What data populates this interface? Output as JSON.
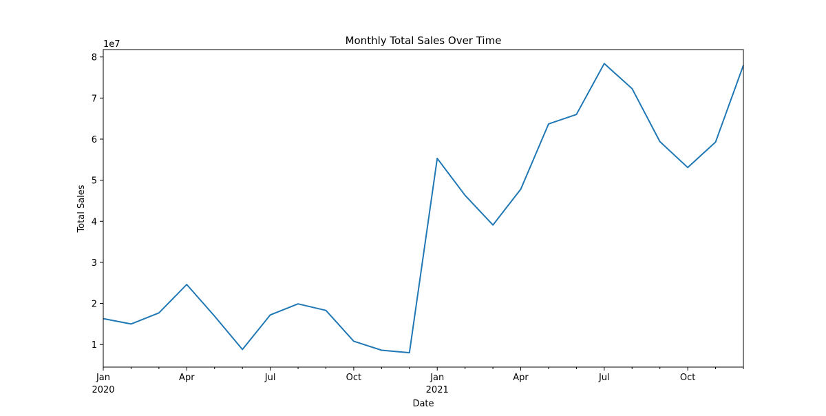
{
  "chart_data": {
    "type": "line",
    "title": "Monthly Total Sales Over Time",
    "xlabel": "Date",
    "ylabel": "Total Sales",
    "y_offset_label": "1e7",
    "ylim": [
      4500000,
      81800000
    ],
    "yticks": [
      10000000,
      20000000,
      30000000,
      40000000,
      50000000,
      60000000,
      70000000,
      80000000
    ],
    "ytick_labels": [
      "1",
      "2",
      "3",
      "4",
      "5",
      "6",
      "7",
      "8"
    ],
    "xlim": [
      "2020-01",
      "2021-12"
    ],
    "xticks_major": [
      {
        "x": "2020-01",
        "label": "Jan",
        "sublabel": "2020"
      },
      {
        "x": "2020-04",
        "label": "Apr",
        "sublabel": ""
      },
      {
        "x": "2020-07",
        "label": "Jul",
        "sublabel": ""
      },
      {
        "x": "2020-10",
        "label": "Oct",
        "sublabel": ""
      },
      {
        "x": "2021-01",
        "label": "Jan",
        "sublabel": "2021"
      },
      {
        "x": "2021-04",
        "label": "Apr",
        "sublabel": ""
      },
      {
        "x": "2021-07",
        "label": "Jul",
        "sublabel": ""
      },
      {
        "x": "2021-10",
        "label": "Oct",
        "sublabel": ""
      }
    ],
    "grid": false,
    "legend": "none",
    "line_color": "#1f77b4",
    "series": [
      {
        "x": [
          "2020-01",
          "2020-02",
          "2020-03",
          "2020-04",
          "2020-05",
          "2020-06",
          "2020-07",
          "2020-08",
          "2020-09",
          "2020-10",
          "2020-11",
          "2020-12",
          "2021-01",
          "2021-02",
          "2021-03",
          "2021-04",
          "2021-05",
          "2021-06",
          "2021-07",
          "2021-08",
          "2021-09",
          "2021-10",
          "2021-11",
          "2021-12"
        ],
        "values": [
          16300000,
          15000000,
          17700000,
          24600000,
          16900000,
          8800000,
          17200000,
          19900000,
          18300000,
          10800000,
          8600000,
          8000000,
          55300000,
          46300000,
          39100000,
          47800000,
          63700000,
          66000000,
          78400000,
          72300000,
          59400000,
          53100000,
          59300000,
          78000000
        ]
      }
    ]
  }
}
